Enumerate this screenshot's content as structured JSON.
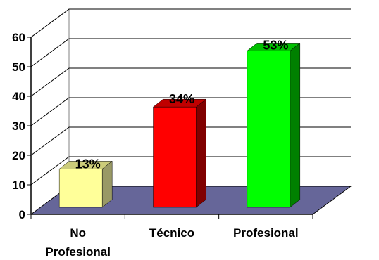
{
  "chart_data": {
    "type": "bar",
    "title": "",
    "xlabel": "",
    "ylabel": "",
    "ylim": [
      0,
      60
    ],
    "yticks": [
      0,
      10,
      20,
      30,
      40,
      50,
      60
    ],
    "grid": true,
    "legend": "none",
    "categories": [
      {
        "lines": [
          "No",
          "Profesional"
        ]
      },
      {
        "lines": [
          "Técnico"
        ]
      },
      {
        "lines": [
          "Profesional"
        ]
      }
    ],
    "values": [
      13,
      34,
      53
    ],
    "data_labels": [
      "13%",
      "34%",
      "53%"
    ],
    "colors": [
      {
        "front": "#ffff99",
        "side": "#999966",
        "top": "#cccc7a"
      },
      {
        "front": "#ff0000",
        "side": "#800000",
        "top": "#c00000"
      },
      {
        "front": "#00ff00",
        "side": "#008000",
        "top": "#00c000"
      }
    ],
    "floor_color": "#666699",
    "wall_color": "#ffffff"
  }
}
